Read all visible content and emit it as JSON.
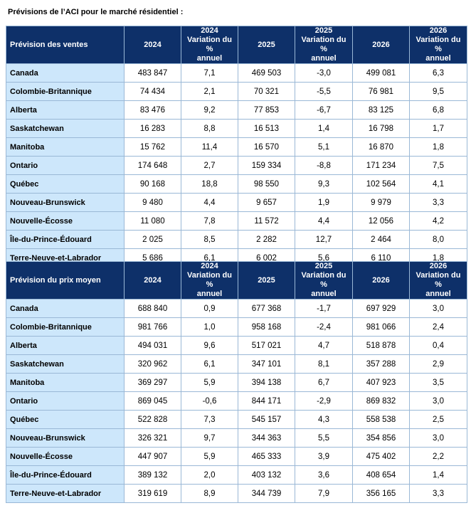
{
  "title": "Prévisions de l’ACI pour le marché résidentiel :",
  "sales": {
    "headers": [
      "Prévision des ventes",
      "2024",
      "2024\nVariation du %\nannuel",
      "2025",
      "2025\nVariation du %\nannuel",
      "2026",
      "2026\nVariation du %\nannuel"
    ],
    "rows": [
      [
        "Canada",
        "483 847",
        "7,1",
        "469 503",
        "-3,0",
        "499 081",
        "6,3"
      ],
      [
        "Colombie-Britannique",
        "74 434",
        "2,1",
        "70 321",
        "-5,5",
        "76 981",
        "9,5"
      ],
      [
        "Alberta",
        "83 476",
        "9,2",
        "77 853",
        "-6,7",
        "83 125",
        "6,8"
      ],
      [
        "Saskatchewan",
        "16 283",
        "8,8",
        "16 513",
        "1,4",
        "16 798",
        "1,7"
      ],
      [
        "Manitoba",
        "15 762",
        "11,4",
        "16 570",
        "5,1",
        "16 870",
        "1,8"
      ],
      [
        "Ontario",
        "174 648",
        "2,7",
        "159 334",
        "-8,8",
        "171 234",
        "7,5"
      ],
      [
        "Québec",
        "90 168",
        "18,8",
        "98 550",
        "9,3",
        "102 564",
        "4,1"
      ],
      [
        "Nouveau-Brunswick",
        "9 480",
        "4,4",
        "9 657",
        "1,9",
        "9 979",
        "3,3"
      ],
      [
        "Nouvelle-Écosse",
        "11 080",
        "7,8",
        "11 572",
        "4,4",
        "12 056",
        "4,2"
      ],
      [
        "Île-du-Prince-Édouard",
        "2 025",
        "8,5",
        "2 282",
        "12,7",
        "2 464",
        "8,0"
      ],
      [
        "Terre-Neuve-et-Labrador",
        "5 686",
        "6,1",
        "6 002",
        "5,6",
        "6 110",
        "1,8"
      ]
    ]
  },
  "price": {
    "headers": [
      "Prévision du prix moyen",
      "2024",
      "2024\nVariation du %\nannuel",
      "2025",
      "2025\nVariation du %\nannuel",
      "2026",
      "2026\nVariation du %\nannuel"
    ],
    "rows": [
      [
        "Canada",
        "688 840",
        "0,9",
        "677 368",
        "-1,7",
        "697 929",
        "3,0"
      ],
      [
        "Colombie-Britannique",
        "981 766",
        "1,0",
        "958 168",
        "-2,4",
        "981 066",
        "2,4"
      ],
      [
        "Alberta",
        "494 031",
        "9,6",
        "517 021",
        "4,7",
        "518 878",
        "0,4"
      ],
      [
        "Saskatchewan",
        "320 962",
        "6,1",
        "347 101",
        "8,1",
        "357 288",
        "2,9"
      ],
      [
        "Manitoba",
        "369 297",
        "5,9",
        "394 138",
        "6,7",
        "407 923",
        "3,5"
      ],
      [
        "Ontario",
        "869 045",
        "-0,6",
        "844 171",
        "-2,9",
        "869 832",
        "3,0"
      ],
      [
        "Québec",
        "522 828",
        "7,3",
        "545 157",
        "4,3",
        "558 538",
        "2,5"
      ],
      [
        "Nouveau-Brunswick",
        "326 321",
        "9,7",
        "344 363",
        "5,5",
        "354 856",
        "3,0"
      ],
      [
        "Nouvelle-Écosse",
        "447 907",
        "5,9",
        "465 333",
        "3,9",
        "475 402",
        "2,2"
      ],
      [
        "Île-du-Prince-Édouard",
        "389 132",
        "2,0",
        "403 132",
        "3,6",
        "408 654",
        "1,4"
      ],
      [
        "Terre-Neuve-et-Labrador",
        "319 619",
        "8,9",
        "344 739",
        "7,9",
        "356 165",
        "3,3"
      ]
    ]
  },
  "colors": {
    "header_bg": "#0e3069",
    "region_bg": "#cde7fb",
    "border": "#9ab8d6"
  }
}
